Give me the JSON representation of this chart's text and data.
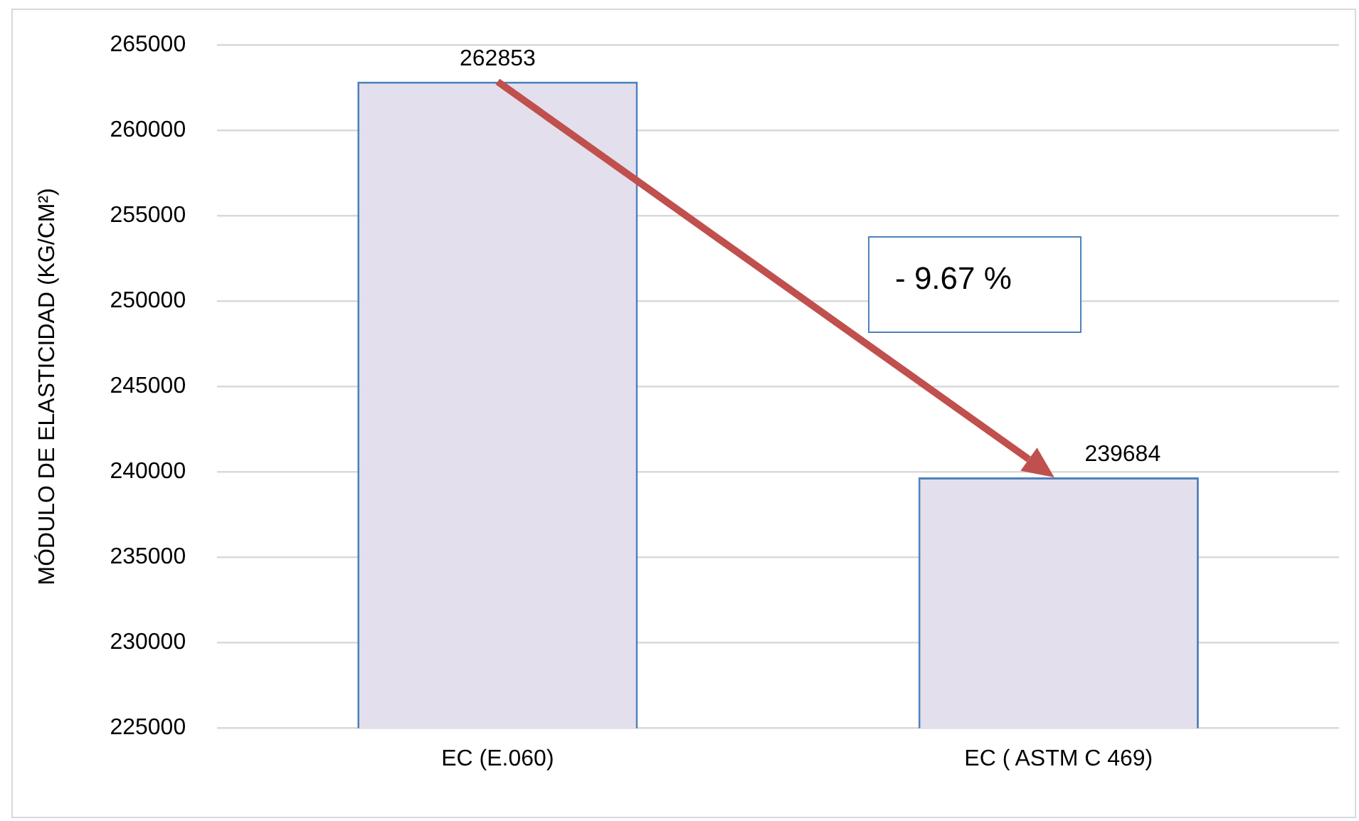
{
  "chart_data": {
    "type": "bar",
    "categories": [
      "EC (E.060)",
      "EC ( ASTM C 469)"
    ],
    "values": [
      262853,
      239684
    ],
    "color": "#e4dfec",
    "ylabel": "MÓDULO DE ELASTICIDAD (KG/CM²)",
    "ylim": [
      225000,
      265000
    ],
    "yticks": [
      225000,
      230000,
      235000,
      240000,
      245000,
      250000,
      255000,
      260000,
      265000
    ],
    "grid": "y",
    "data_labels": true,
    "annotations": [
      "- 9.67 %"
    ]
  }
}
